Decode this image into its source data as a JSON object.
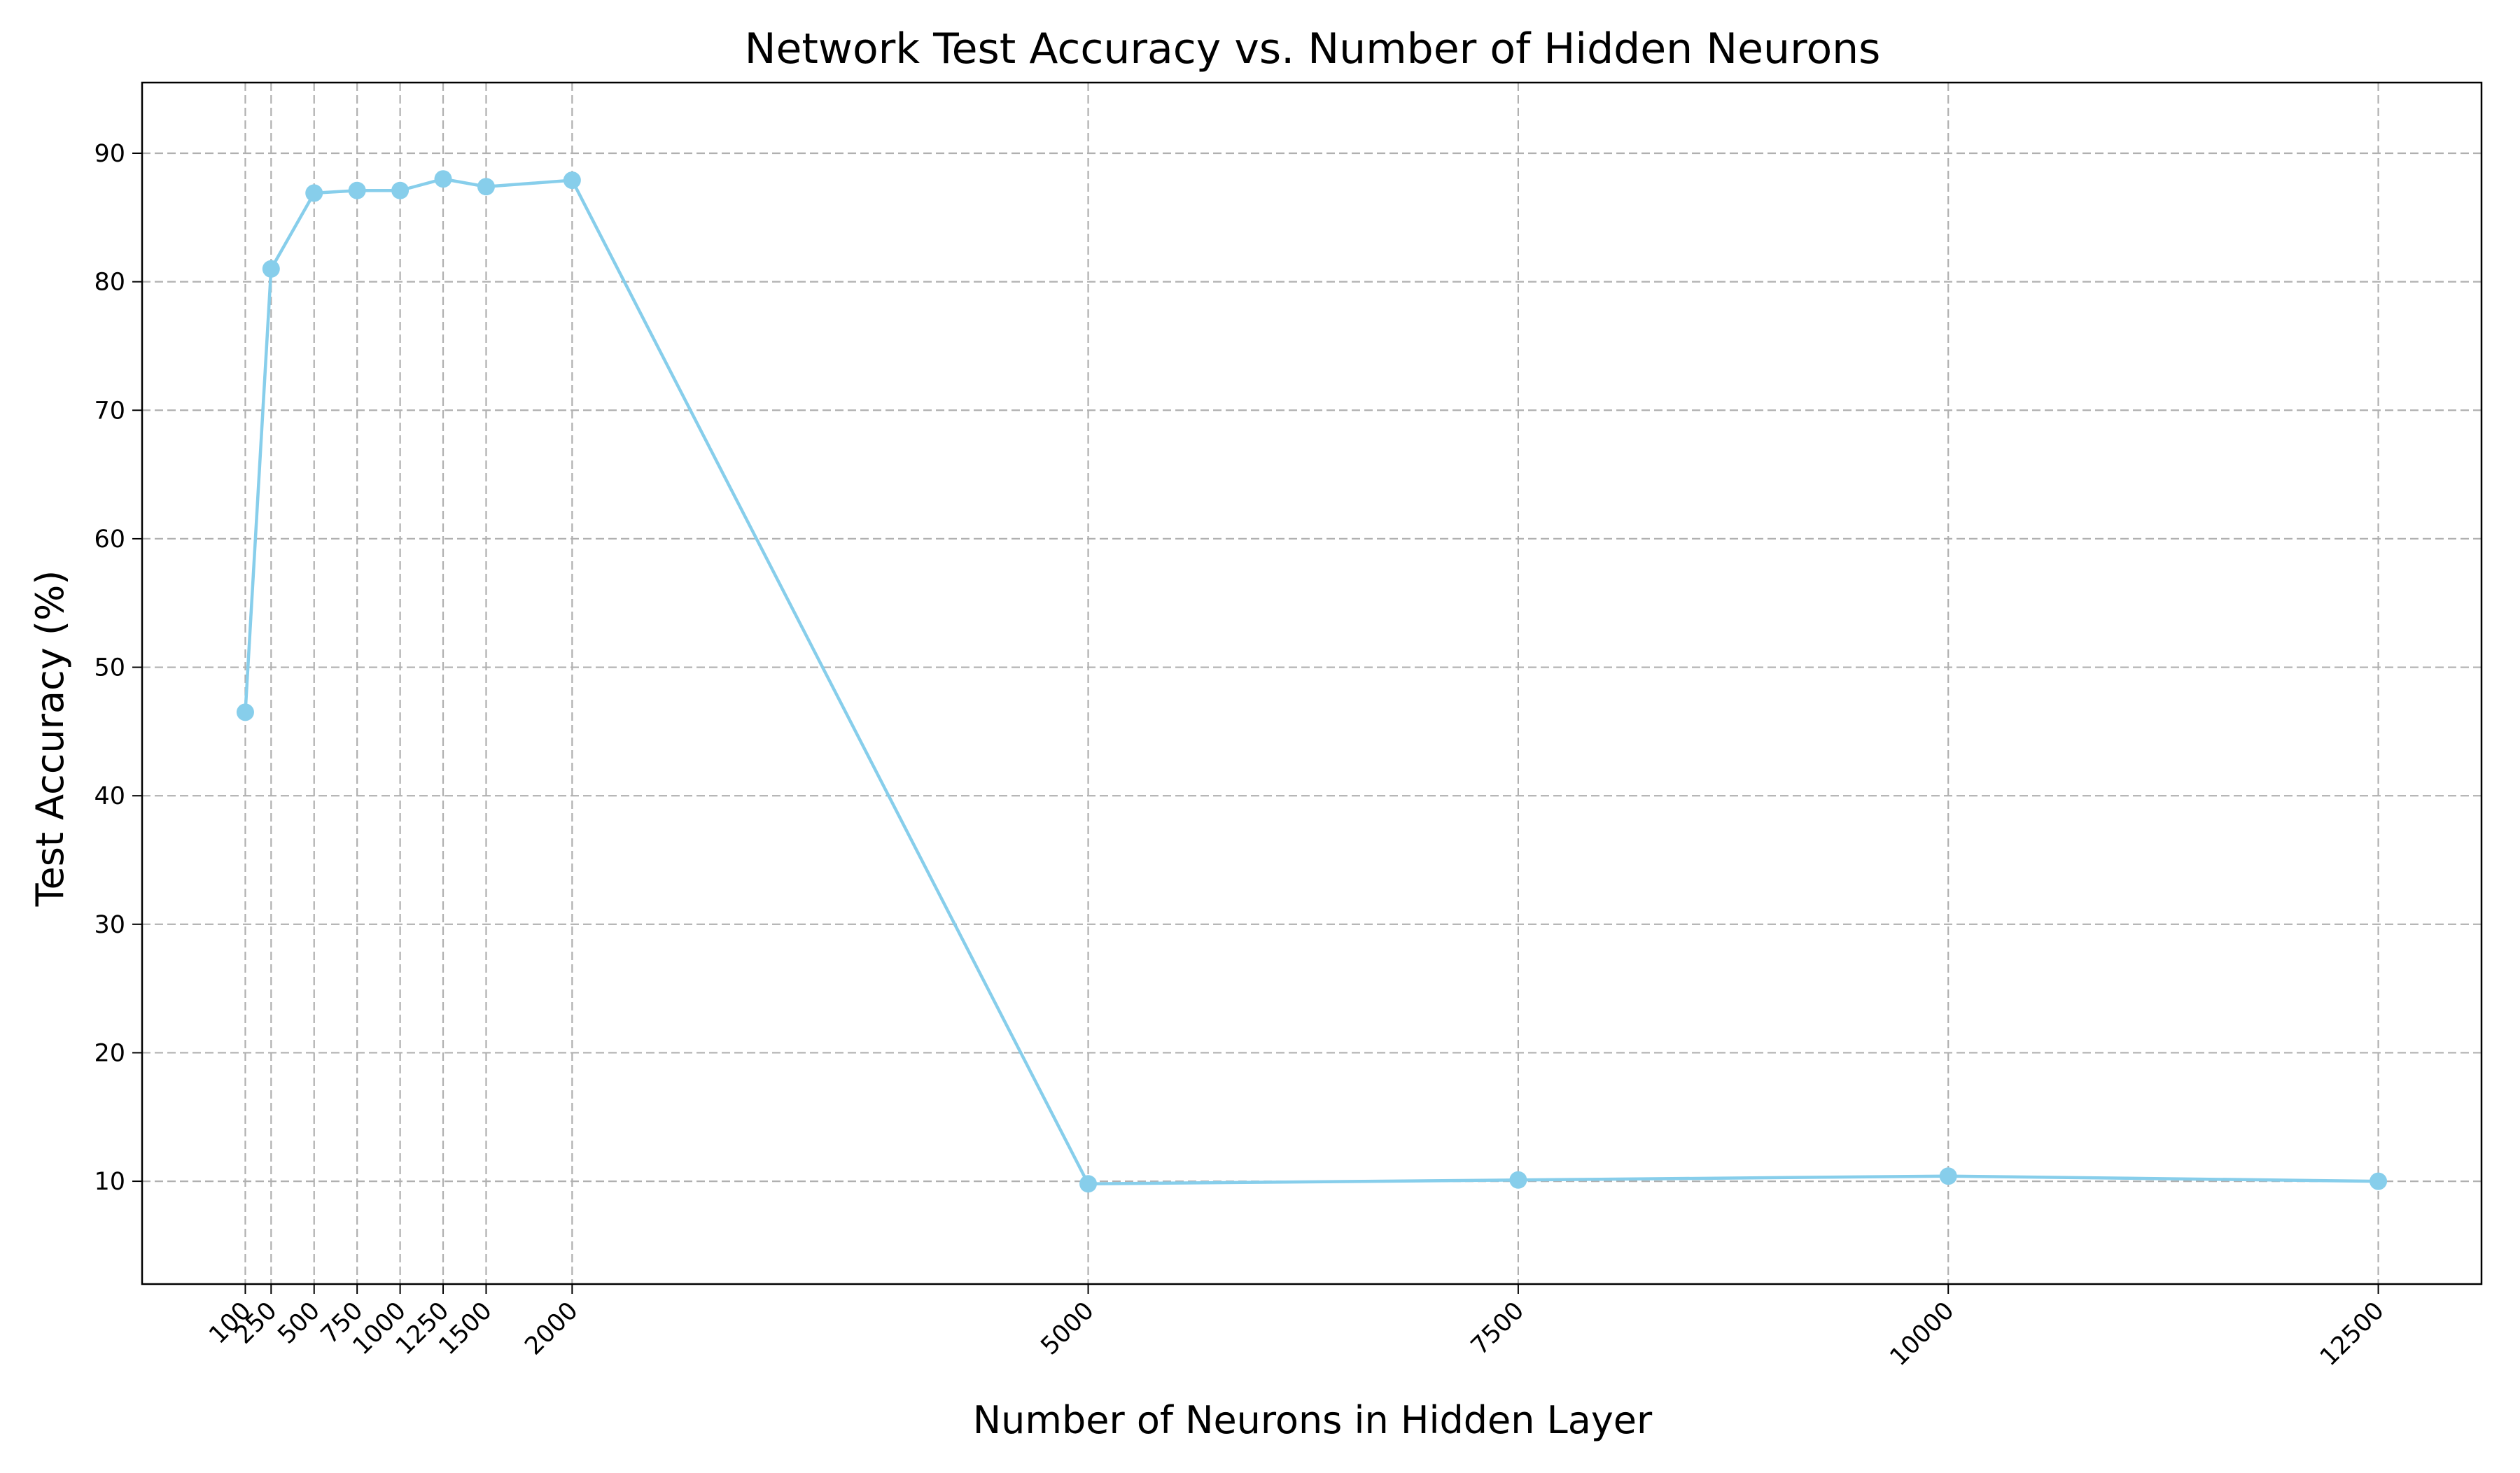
{
  "chart_data": {
    "type": "line",
    "title": "Network Test Accuracy vs. Number of Hidden Neurons",
    "xlabel": "Number of Neurons in Hidden Layer",
    "ylabel": "Test Accuracy (%)",
    "x": [
      100,
      250,
      500,
      750,
      1000,
      1250,
      1500,
      2000,
      5000,
      7500,
      10000,
      12500
    ],
    "x_tick_labels": [
      "100",
      "250",
      "500",
      "750",
      "1000",
      "1250",
      "1500",
      "2000",
      "5000",
      "7500",
      "10000",
      "12500"
    ],
    "y_ticks": [
      10,
      20,
      30,
      40,
      50,
      60,
      70,
      80,
      90
    ],
    "y_tick_labels": [
      "10",
      "20",
      "30",
      "40",
      "50",
      "60",
      "70",
      "80",
      "90"
    ],
    "xlim": [
      -500,
      13100
    ],
    "ylim": [
      2,
      95.5
    ],
    "series": [
      {
        "values": [
          46.5,
          81.0,
          86.9,
          87.1,
          87.1,
          88.0,
          87.4,
          87.9,
          9.8,
          10.1,
          10.4,
          10.0
        ],
        "color": "#87ceeb",
        "marker": "circle"
      }
    ],
    "grid": true,
    "x_tick_rotation": 45
  }
}
